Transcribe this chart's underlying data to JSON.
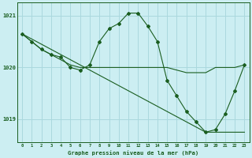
{
  "title": "Graphe pression niveau de la mer (hPa)",
  "hours": [
    0,
    1,
    2,
    3,
    4,
    5,
    6,
    7,
    8,
    9,
    10,
    11,
    12,
    13,
    14,
    15,
    16,
    17,
    18,
    19,
    20,
    21,
    22,
    23
  ],
  "background_color": "#cceef2",
  "grid_color": "#aad8de",
  "line_color": "#1a5e20",
  "ylim": [
    1018.55,
    1021.25
  ],
  "yticks": [
    1019,
    1020,
    1021
  ],
  "line_straight": [
    1020.65,
    1020.55,
    1020.45,
    1020.35,
    1020.25,
    1020.15,
    1020.05,
    1019.95,
    1019.85,
    1019.75,
    1019.65,
    1019.55,
    1019.45,
    1019.35,
    1019.25,
    1019.15,
    1019.05,
    1018.95,
    1018.85,
    1018.75,
    1018.75,
    1018.75,
    1018.75,
    1018.75
  ],
  "line_flat": [
    1020.65,
    1020.5,
    1020.35,
    1020.25,
    1020.15,
    1020.05,
    1020.0,
    1020.0,
    1020.0,
    1020.0,
    1020.0,
    1020.0,
    1020.0,
    1020.0,
    1020.0,
    1020.0,
    1019.95,
    1019.9,
    1019.9,
    1019.9,
    1020.0,
    1020.0,
    1020.0,
    1020.05
  ],
  "line_wavy": [
    1020.65,
    1020.5,
    1020.35,
    1020.25,
    1020.2,
    1020.0,
    1019.95,
    1020.05,
    1020.5,
    1020.75,
    1020.85,
    1021.05,
    1021.05,
    1020.8,
    1020.5,
    1019.75,
    1019.45,
    1019.15,
    1018.95,
    1018.75,
    1018.8,
    1019.1,
    1019.55,
    1020.05
  ]
}
